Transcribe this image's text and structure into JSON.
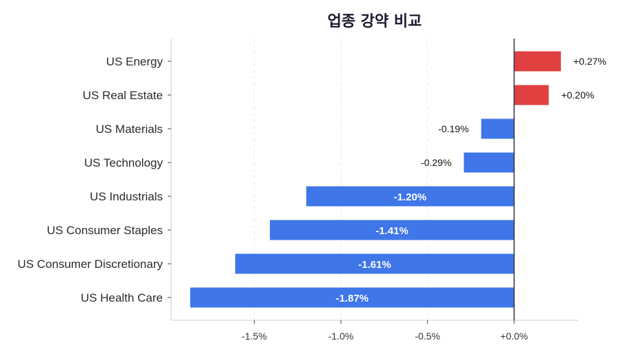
{
  "chart_data": {
    "type": "bar",
    "orientation": "horizontal",
    "title": "업종 강약 비교",
    "xlabel": "",
    "ylabel": "",
    "categories": [
      "US Energy",
      "US Real Estate",
      "US Materials",
      "US Technology",
      "US Industrials",
      "US Consumer Staples",
      "US Consumer Discretionary",
      "US Health Care"
    ],
    "values": [
      0.27,
      0.2,
      -0.19,
      -0.29,
      -1.2,
      -1.41,
      -1.61,
      -1.87
    ],
    "value_labels": [
      "+0.27%",
      "+0.20%",
      "-0.19%",
      "-0.29%",
      "-1.20%",
      "-1.41%",
      "-1.61%",
      "-1.87%"
    ],
    "xlim": [
      -1.98,
      0.37
    ],
    "xticks": [
      -1.5,
      -1.0,
      -0.5,
      0.0
    ],
    "xtick_labels": [
      "-1.5%",
      "-1.0%",
      "-0.5%",
      "+0.0%"
    ],
    "grid": "vertical dashed",
    "colors": {
      "positive": "#e04040",
      "negative": "#3f76e8",
      "zero_line": "#2e3440",
      "axis": "#cccccc",
      "grid": "#e6e6e6"
    }
  }
}
